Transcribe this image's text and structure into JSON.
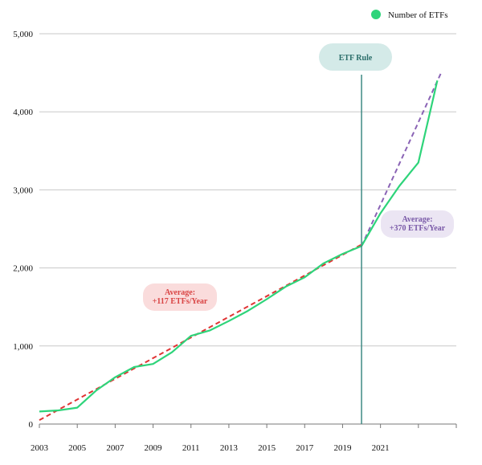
{
  "chart_data": {
    "type": "line",
    "legend": {
      "label": "Number of ETFs",
      "position": "top-right"
    },
    "x_ticks": [
      "2003",
      "2005",
      "2007",
      "2009",
      "2011",
      "2013",
      "2015",
      "2017",
      "2019",
      "2021"
    ],
    "y_ticks": [
      "0",
      "1,000",
      "2,000",
      "3,000",
      "4,000",
      "5,000"
    ],
    "xlim": [
      2003,
      2025
    ],
    "ylim": [
      0,
      5000
    ],
    "grid": "horizontal",
    "series": [
      {
        "name": "Number of ETFs",
        "color": "#2ed47a",
        "x": [
          2003,
          2004,
          2005,
          2006,
          2007,
          2008,
          2009,
          2010,
          2011,
          2012,
          2013,
          2014,
          2015,
          2016,
          2017,
          2018,
          2019,
          2020,
          2021,
          2022,
          2023,
          2024
        ],
        "y": [
          160,
          175,
          210,
          430,
          600,
          730,
          770,
          920,
          1130,
          1200,
          1320,
          1450,
          1600,
          1760,
          1880,
          2060,
          2180,
          2280,
          2700,
          3050,
          3350,
          4400
        ]
      }
    ],
    "trend_lines": [
      {
        "color": "#e03434",
        "x": [
          2003,
          2020
        ],
        "y": [
          50,
          2300
        ]
      },
      {
        "color": "#8a63b5",
        "x": [
          2020,
          2024.2
        ],
        "y": [
          2280,
          4500
        ]
      }
    ],
    "vertical_marker": {
      "x": 2020,
      "color": "#3e8a84",
      "label": "ETF Rule"
    },
    "annotations": [
      {
        "id": "avg-before",
        "lines": [
          "Average:",
          "+117 ETFs/Year"
        ],
        "text_color": "#d94444",
        "bg_color": "#fadcdc"
      },
      {
        "id": "avg-after",
        "lines": [
          "Average:",
          "+370 ETFs/Year"
        ],
        "text_color": "#7a5aa8",
        "bg_color": "#ebe5f3"
      }
    ],
    "rule_label_bg": "#d4eae8",
    "rule_label_text_color": "#2b6e6a"
  }
}
